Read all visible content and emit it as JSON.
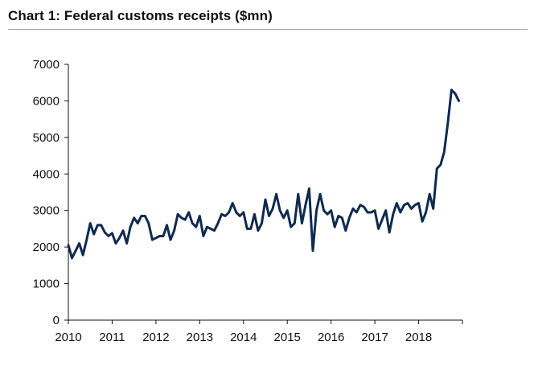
{
  "chart_data": {
    "type": "line",
    "title": "Chart 1: Federal customs receipts ($mn)",
    "xlabel": "",
    "ylabel": "",
    "xlim": [
      2010,
      2019
    ],
    "ylim": [
      0,
      7000
    ],
    "y_ticks": [
      0,
      1000,
      2000,
      3000,
      4000,
      5000,
      6000,
      7000
    ],
    "x_ticks": [
      "2010",
      "2011",
      "2012",
      "2013",
      "2014",
      "2015",
      "2016",
      "2017",
      "2018"
    ],
    "grid": false,
    "legend": "none",
    "color": "#0f2a4f",
    "series": [
      {
        "name": "Federal customs receipts",
        "x": [
          2010.0,
          2010.083,
          2010.167,
          2010.25,
          2010.333,
          2010.417,
          2010.5,
          2010.583,
          2010.667,
          2010.75,
          2010.833,
          2010.917,
          2011.0,
          2011.083,
          2011.167,
          2011.25,
          2011.333,
          2011.417,
          2011.5,
          2011.583,
          2011.667,
          2011.75,
          2011.833,
          2011.917,
          2012.0,
          2012.083,
          2012.167,
          2012.25,
          2012.333,
          2012.417,
          2012.5,
          2012.583,
          2012.667,
          2012.75,
          2012.833,
          2012.917,
          2013.0,
          2013.083,
          2013.167,
          2013.25,
          2013.333,
          2013.417,
          2013.5,
          2013.583,
          2013.667,
          2013.75,
          2013.833,
          2013.917,
          2014.0,
          2014.083,
          2014.167,
          2014.25,
          2014.333,
          2014.417,
          2014.5,
          2014.583,
          2014.667,
          2014.75,
          2014.833,
          2014.917,
          2015.0,
          2015.083,
          2015.167,
          2015.25,
          2015.333,
          2015.417,
          2015.5,
          2015.583,
          2015.667,
          2015.75,
          2015.833,
          2015.917,
          2016.0,
          2016.083,
          2016.167,
          2016.25,
          2016.333,
          2016.417,
          2016.5,
          2016.583,
          2016.667,
          2016.75,
          2016.833,
          2016.917,
          2017.0,
          2017.083,
          2017.167,
          2017.25,
          2017.333,
          2017.417,
          2017.5,
          2017.583,
          2017.667,
          2017.75,
          2017.833,
          2017.917,
          2018.0,
          2018.083,
          2018.167,
          2018.25,
          2018.333,
          2018.417,
          2018.5,
          2018.583,
          2018.667,
          2018.75,
          2018.833,
          2018.917
        ],
        "values": [
          2050,
          1700,
          1900,
          2100,
          1780,
          2200,
          2650,
          2350,
          2600,
          2600,
          2400,
          2300,
          2380,
          2100,
          2250,
          2450,
          2100,
          2550,
          2800,
          2650,
          2850,
          2850,
          2650,
          2200,
          2250,
          2300,
          2300,
          2600,
          2200,
          2450,
          2900,
          2800,
          2750,
          2950,
          2650,
          2550,
          2850,
          2300,
          2550,
          2500,
          2450,
          2650,
          2900,
          2850,
          2950,
          3200,
          2950,
          2850,
          2950,
          2500,
          2500,
          2900,
          2450,
          2650,
          3300,
          2850,
          3050,
          3450,
          3000,
          2800,
          3000,
          2550,
          2650,
          3450,
          2650,
          3150,
          3600,
          1900,
          3000,
          3450,
          3000,
          2900,
          3000,
          2550,
          2850,
          2800,
          2450,
          2800,
          3050,
          2950,
          3150,
          3100,
          2950,
          2950,
          3000,
          2500,
          2750,
          3000,
          2400,
          2900,
          3200,
          2950,
          3150,
          3200,
          3050,
          3150,
          3200,
          2700,
          2950,
          3450,
          3050,
          4150,
          4250,
          4600,
          5400,
          6300,
          6200,
          6000
        ]
      }
    ]
  }
}
